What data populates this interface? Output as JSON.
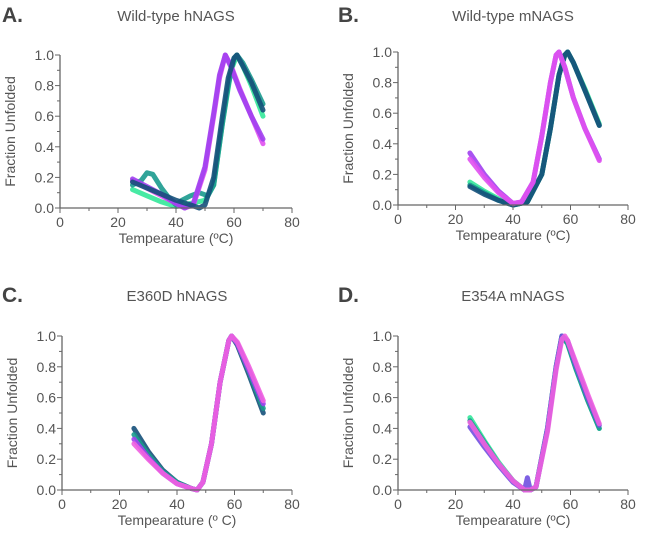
{
  "chart_data": [
    {
      "type": "line",
      "panel": "A.",
      "title": "Wild-type hNAGS",
      "xlabel": "Tempearature (ºC)",
      "ylabel": "Fraction Unfolded",
      "xlim": [
        0,
        80
      ],
      "ylim": [
        0,
        1.0
      ],
      "xticks": [
        "0",
        "20",
        "40",
        "60",
        "80"
      ],
      "yticks": [
        "0.0",
        "0.2",
        "0.4",
        "0.6",
        "0.8",
        "1.0"
      ],
      "series": [
        {
          "color": "#33e89a",
          "x": [
            25,
            30,
            35,
            40,
            45,
            50,
            53,
            56,
            59,
            61,
            63,
            66,
            70
          ],
          "y": [
            0.12,
            0.08,
            0.04,
            0.01,
            0.03,
            0.05,
            0.15,
            0.55,
            0.9,
            1.0,
            0.93,
            0.8,
            0.6
          ]
        },
        {
          "color": "#1a9a8e",
          "x": [
            25,
            28,
            30,
            32,
            35,
            37,
            40,
            42,
            45,
            48,
            51,
            53,
            56,
            58,
            60,
            61,
            63,
            66,
            70
          ],
          "y": [
            0.15,
            0.18,
            0.23,
            0.22,
            0.13,
            0.08,
            0.02,
            0.05,
            0.08,
            0.1,
            0.08,
            0.15,
            0.55,
            0.8,
            0.98,
            1.0,
            0.95,
            0.84,
            0.68
          ]
        },
        {
          "color": "#e050f0",
          "x": [
            25,
            30,
            35,
            40,
            43,
            46,
            50,
            53,
            55,
            57,
            59,
            62,
            66,
            70
          ],
          "y": [
            0.18,
            0.13,
            0.08,
            0.03,
            0.0,
            0.02,
            0.25,
            0.6,
            0.85,
            1.0,
            0.93,
            0.78,
            0.6,
            0.42
          ]
        },
        {
          "color": "#a040f0",
          "x": [
            25,
            30,
            35,
            40,
            43,
            46,
            50,
            53,
            55,
            57,
            59,
            62,
            66,
            70
          ],
          "y": [
            0.19,
            0.14,
            0.09,
            0.03,
            0.0,
            0.03,
            0.27,
            0.62,
            0.87,
            1.0,
            0.92,
            0.77,
            0.6,
            0.45
          ]
        },
        {
          "color": "#15507a",
          "x": [
            25,
            30,
            35,
            40,
            45,
            48,
            50,
            53,
            56,
            58,
            60,
            61,
            63,
            66,
            70
          ],
          "y": [
            0.17,
            0.13,
            0.09,
            0.05,
            0.02,
            0.0,
            0.02,
            0.2,
            0.6,
            0.85,
            0.98,
            1.0,
            0.93,
            0.82,
            0.64
          ]
        }
      ]
    },
    {
      "type": "line",
      "panel": "B.",
      "title": "Wild-type mNAGS",
      "xlabel": "Tempearature (ºC)",
      "ylabel": "Fraction Unfolded",
      "xlim": [
        0,
        80
      ],
      "ylim": [
        0,
        1.0
      ],
      "xticks": [
        "0",
        "20",
        "40",
        "60",
        "80"
      ],
      "yticks": [
        "0.0",
        "0.2",
        "0.4",
        "0.6",
        "0.8",
        "1.0"
      ],
      "series": [
        {
          "color": "#33e89a",
          "x": [
            25,
            30,
            35,
            40,
            45,
            50,
            53,
            56,
            58,
            59,
            61,
            65,
            70
          ],
          "y": [
            0.15,
            0.09,
            0.04,
            0.0,
            0.02,
            0.2,
            0.5,
            0.85,
            0.98,
            1.0,
            0.93,
            0.76,
            0.53
          ]
        },
        {
          "color": "#1a9a8e",
          "x": [
            25,
            30,
            35,
            40,
            45,
            50,
            53,
            56,
            58,
            59,
            61,
            65,
            70
          ],
          "y": [
            0.13,
            0.08,
            0.03,
            0.0,
            0.02,
            0.2,
            0.5,
            0.85,
            0.98,
            1.0,
            0.93,
            0.75,
            0.52
          ]
        },
        {
          "color": "#15507a",
          "x": [
            25,
            30,
            35,
            40,
            45,
            50,
            53,
            56,
            58,
            59,
            61,
            65,
            70
          ],
          "y": [
            0.12,
            0.07,
            0.03,
            0.0,
            0.02,
            0.2,
            0.5,
            0.85,
            0.98,
            1.0,
            0.93,
            0.75,
            0.52
          ]
        },
        {
          "color": "#a040f0",
          "x": [
            25,
            30,
            35,
            40,
            43,
            47,
            50,
            53,
            55,
            56,
            58,
            61,
            65,
            70
          ],
          "y": [
            0.34,
            0.2,
            0.09,
            0.01,
            0.02,
            0.15,
            0.45,
            0.8,
            0.98,
            1.0,
            0.9,
            0.7,
            0.5,
            0.3
          ]
        },
        {
          "color": "#e050f0",
          "x": [
            25,
            30,
            35,
            40,
            43,
            47,
            50,
            53,
            55,
            56,
            58,
            61,
            65,
            70
          ],
          "y": [
            0.3,
            0.18,
            0.08,
            0.01,
            0.02,
            0.15,
            0.45,
            0.8,
            0.98,
            1.0,
            0.9,
            0.7,
            0.5,
            0.29
          ]
        }
      ]
    },
    {
      "type": "line",
      "panel": "C.",
      "title": "E360D hNAGS",
      "xlabel": "Tempearature (º C)",
      "ylabel": "Fraction Unfolded",
      "xlim": [
        0,
        80
      ],
      "ylim": [
        0,
        1.0
      ],
      "xticks": [
        "0",
        "20",
        "40",
        "60",
        "80"
      ],
      "yticks": [
        "0.0",
        "0.2",
        "0.4",
        "0.6",
        "0.8",
        "1.0"
      ],
      "series": [
        {
          "color": "#15507a",
          "x": [
            25,
            30,
            35,
            40,
            45,
            47,
            49,
            52,
            55,
            58,
            59,
            61,
            65,
            70
          ],
          "y": [
            0.4,
            0.25,
            0.13,
            0.05,
            0.01,
            0.0,
            0.05,
            0.3,
            0.7,
            0.97,
            1.0,
            0.94,
            0.75,
            0.5
          ]
        },
        {
          "color": "#1a9a8e",
          "x": [
            25,
            30,
            35,
            40,
            45,
            47,
            49,
            52,
            55,
            58,
            59,
            61,
            65,
            70
          ],
          "y": [
            0.36,
            0.23,
            0.12,
            0.05,
            0.01,
            0.0,
            0.05,
            0.3,
            0.7,
            0.97,
            1.0,
            0.95,
            0.77,
            0.53
          ]
        },
        {
          "color": "#a040f0",
          "x": [
            25,
            30,
            35,
            40,
            45,
            47,
            49,
            52,
            55,
            58,
            59,
            61,
            65,
            70
          ],
          "y": [
            0.33,
            0.21,
            0.11,
            0.04,
            0.01,
            0.0,
            0.05,
            0.3,
            0.7,
            0.97,
            1.0,
            0.95,
            0.78,
            0.56
          ]
        },
        {
          "color": "#f060e0",
          "x": [
            25,
            30,
            35,
            40,
            45,
            47,
            49,
            52,
            55,
            58,
            59,
            61,
            65,
            70
          ],
          "y": [
            0.3,
            0.2,
            0.11,
            0.04,
            0.01,
            0.0,
            0.05,
            0.3,
            0.7,
            0.97,
            1.0,
            0.96,
            0.8,
            0.58
          ]
        }
      ]
    },
    {
      "type": "line",
      "panel": "D.",
      "title": "E354A mNAGS",
      "xlabel": "Tempearature (ºC)",
      "ylabel": "Fraction Unfolded",
      "xlim": [
        0,
        80
      ],
      "ylim": [
        0,
        1.0
      ],
      "xticks": [
        "0",
        "20",
        "40",
        "60",
        "80"
      ],
      "yticks": [
        "0.0",
        "0.2",
        "0.4",
        "0.6",
        "0.8",
        "1.0"
      ],
      "series": [
        {
          "color": "#33e89a",
          "x": [
            25,
            30,
            35,
            40,
            44,
            46,
            48,
            52,
            55,
            57,
            59,
            62,
            66,
            70
          ],
          "y": [
            0.47,
            0.32,
            0.18,
            0.06,
            0.0,
            0.0,
            0.02,
            0.4,
            0.8,
            1.0,
            0.95,
            0.78,
            0.58,
            0.4
          ]
        },
        {
          "color": "#1a9a8e",
          "x": [
            25,
            30,
            35,
            40,
            44,
            46,
            48,
            52,
            55,
            57,
            59,
            62,
            66,
            70
          ],
          "y": [
            0.45,
            0.31,
            0.17,
            0.06,
            0.0,
            0.0,
            0.02,
            0.4,
            0.8,
            1.0,
            0.95,
            0.78,
            0.58,
            0.4
          ]
        },
        {
          "color": "#7050e0",
          "x": [
            25,
            30,
            35,
            40,
            44,
            45,
            46,
            48,
            52,
            55,
            57,
            59,
            62,
            66,
            70
          ],
          "y": [
            0.41,
            0.28,
            0.16,
            0.05,
            0.0,
            0.08,
            0.0,
            0.02,
            0.4,
            0.8,
            1.0,
            0.97,
            0.8,
            0.6,
            0.42
          ]
        },
        {
          "color": "#f060e0",
          "x": [
            25,
            30,
            35,
            40,
            44,
            46,
            48,
            52,
            55,
            57,
            58,
            59,
            62,
            66,
            70
          ],
          "y": [
            0.44,
            0.3,
            0.17,
            0.06,
            0.0,
            0.0,
            0.02,
            0.38,
            0.78,
            0.98,
            1.0,
            0.97,
            0.82,
            0.62,
            0.43
          ]
        }
      ]
    }
  ]
}
